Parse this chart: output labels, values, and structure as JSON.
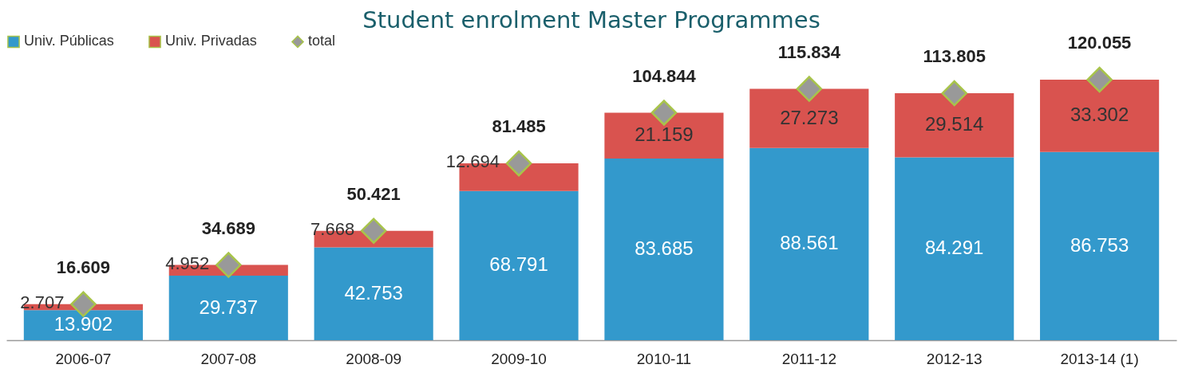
{
  "chart_data": {
    "type": "bar",
    "title": "Student enrolment Master Programmes",
    "stacked": true,
    "legend": "top left",
    "grid": false,
    "categories": [
      "2006-07",
      "2007-08",
      "2008-09",
      "2009-10",
      "2010-11",
      "2011-12",
      "2012-13",
      "2013-14 (1)"
    ],
    "series": [
      {
        "name": "Univ. Públicas",
        "color": "#3399cc",
        "values": [
          13902,
          29737,
          42753,
          68791,
          83685,
          88561,
          84291,
          86753
        ],
        "value_labels": [
          "13.902",
          "29.737",
          "42.753",
          "68.791",
          "83.685",
          "88.561",
          "84.291",
          "86.753"
        ]
      },
      {
        "name": "Univ. Privadas",
        "color": "#d9534f",
        "values": [
          2707,
          4952,
          7668,
          12694,
          21159,
          27273,
          29514,
          33302
        ],
        "value_labels": [
          "2.707",
          "4.952",
          "7.668",
          "12.694",
          "21.159",
          "27.273",
          "29.514",
          "33.302"
        ]
      },
      {
        "name": "total",
        "type": "scatter",
        "marker": "diamond",
        "color": "#999999",
        "values": [
          16609,
          34689,
          50421,
          81485,
          104844,
          115834,
          113805,
          120055
        ]
      }
    ],
    "totals": [
      "16.609",
      "34.689",
      "50.421",
      "81.485",
      "104.844",
      "115.834",
      "113.805",
      "120.055"
    ]
  }
}
